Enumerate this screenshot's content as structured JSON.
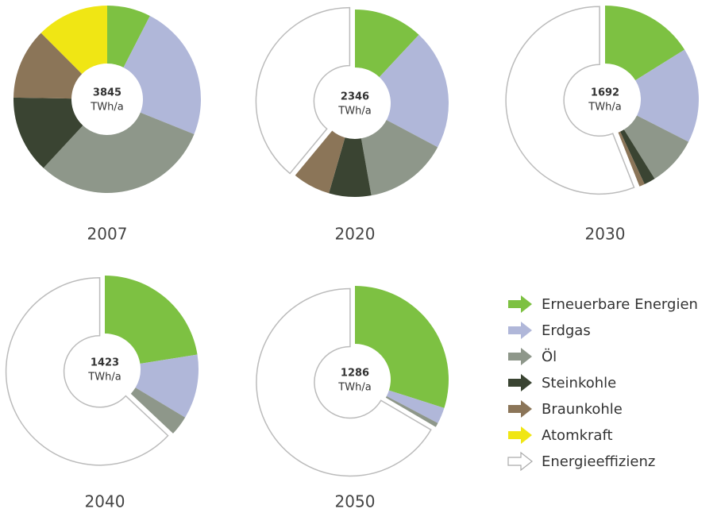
{
  "chart_data": [
    {
      "type": "donut",
      "title": "2007",
      "total": 3845,
      "unit": "TWh/a",
      "categories": [
        "Erneuerbare Energien",
        "Erdgas",
        "Öl",
        "Steinkohle",
        "Braunkohle",
        "Atomkraft",
        "Energieeffizienz"
      ],
      "colors": [
        "#7dc142",
        "#b0b7d9",
        "#8e978a",
        "#3a4432",
        "#8b7558",
        "#f0e614",
        "#ffffff"
      ],
      "values": [
        290,
        905,
        1185,
        515,
        470,
        480,
        0
      ]
    },
    {
      "type": "donut",
      "title": "2020",
      "total": 2346,
      "unit": "TWh/a",
      "categories": [
        "Erneuerbare Energien",
        "Erdgas",
        "Öl",
        "Steinkohle",
        "Braunkohle",
        "Atomkraft",
        "Energieeffizienz"
      ],
      "colors": [
        "#7dc142",
        "#b0b7d9",
        "#8e978a",
        "#3a4432",
        "#8b7558",
        "#f0e614",
        "#ffffff"
      ],
      "values": [
        460,
        800,
        555,
        280,
        251,
        0,
        1499
      ]
    },
    {
      "type": "donut",
      "title": "2030",
      "total": 1692,
      "unit": "TWh/a",
      "categories": [
        "Erneuerbare Energien",
        "Erdgas",
        "Öl",
        "Steinkohle",
        "Braunkohle",
        "Atomkraft",
        "Energieeffizienz"
      ],
      "colors": [
        "#7dc142",
        "#b0b7d9",
        "#8e978a",
        "#3a4432",
        "#8b7558",
        "#f0e614",
        "#ffffff"
      ],
      "values": [
        620,
        630,
        331,
        75,
        36,
        0,
        2153
      ]
    },
    {
      "type": "donut",
      "title": "2040",
      "total": 1423,
      "unit": "TWh/a",
      "categories": [
        "Erneuerbare Energien",
        "Erdgas",
        "Öl",
        "Steinkohle",
        "Braunkohle",
        "Atomkraft",
        "Energieeffizienz"
      ],
      "colors": [
        "#7dc142",
        "#b0b7d9",
        "#8e978a",
        "#3a4432",
        "#8b7558",
        "#f0e614",
        "#ffffff"
      ],
      "values": [
        865,
        427,
        131,
        0,
        0,
        0,
        2422
      ]
    },
    {
      "type": "donut",
      "title": "2050",
      "total": 1286,
      "unit": "TWh/a",
      "categories": [
        "Erneuerbare Energien",
        "Erdgas",
        "Öl",
        "Steinkohle",
        "Braunkohle",
        "Atomkraft",
        "Energieeffizienz"
      ],
      "colors": [
        "#7dc142",
        "#b0b7d9",
        "#8e978a",
        "#3a4432",
        "#8b7558",
        "#f0e614",
        "#ffffff"
      ],
      "values": [
        1150,
        107,
        29,
        0,
        0,
        0,
        2559
      ]
    }
  ]
}
